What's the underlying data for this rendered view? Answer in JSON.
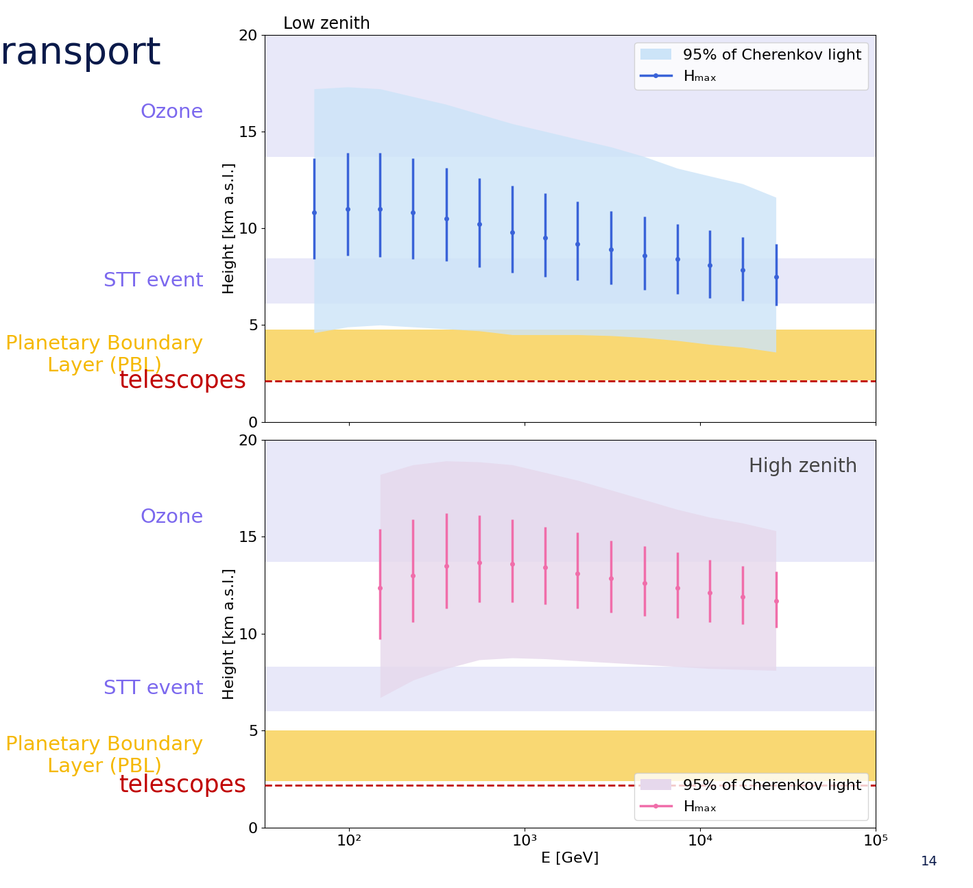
{
  "slide_title": "ransport",
  "page": 14,
  "chart_data": [
    {
      "type": "errorbar",
      "title": "Low zenith",
      "ylabel": "Height [km a.s.l.]",
      "xlim": [
        33,
        100000
      ],
      "ylim": [
        0,
        20
      ],
      "yticks": [
        0,
        5,
        10,
        15,
        20
      ],
      "xticks": [
        {
          "value": 100,
          "label": "10²"
        },
        {
          "value": 1000,
          "label": "10³"
        },
        {
          "value": 10000,
          "label": "10⁴"
        },
        {
          "value": 100000,
          "label": "10⁵"
        }
      ],
      "log": "x",
      "tick_labels": "y",
      "legend": "upper right",
      "x": [
        63,
        98,
        150,
        231,
        357,
        550,
        850,
        1310,
        2000,
        3100,
        4800,
        7400,
        11300,
        17400,
        27000
      ],
      "series": [
        {
          "name": "95% of Cherenkov light",
          "type": "band",
          "color": "#cce4f8",
          "lower": [
            4.6,
            4.9,
            5.0,
            4.9,
            4.8,
            4.7,
            4.5,
            4.5,
            4.5,
            4.45,
            4.35,
            4.2,
            4.0,
            3.85,
            3.6
          ],
          "upper": [
            17.2,
            17.3,
            17.2,
            16.8,
            16.4,
            15.9,
            15.4,
            15.0,
            14.6,
            14.2,
            13.7,
            13.1,
            12.7,
            12.3,
            11.6
          ]
        },
        {
          "name": "Hₘₐₓ",
          "type": "errorbar",
          "color": "#3a63d8",
          "marker": "o",
          "values": [
            10.8,
            11.0,
            11.0,
            10.8,
            10.5,
            10.2,
            9.8,
            9.5,
            9.2,
            8.9,
            8.6,
            8.4,
            8.1,
            7.85,
            7.5
          ],
          "error_low": [
            2.4,
            2.4,
            2.5,
            2.4,
            2.2,
            2.2,
            2.1,
            2.0,
            1.9,
            1.8,
            1.8,
            1.8,
            1.7,
            1.6,
            1.5
          ],
          "error_high": [
            2.8,
            2.9,
            2.9,
            2.8,
            2.6,
            2.4,
            2.4,
            2.3,
            2.2,
            2.0,
            2.0,
            1.8,
            1.8,
            1.7,
            1.7
          ]
        }
      ],
      "layers": [
        {
          "label": "Ozone",
          "range": [
            13.7,
            20
          ],
          "color": "#7b68ee"
        },
        {
          "label": "STT event",
          "range": [
            6.1,
            8.45
          ],
          "color": "#7b68ee"
        },
        {
          "label": "Planetary Boundary\nLayer (PBL)",
          "range": [
            2.15,
            4.75
          ],
          "color": "#f5b800"
        }
      ],
      "telescopes": {
        "label": "telescopes",
        "height": 2.1,
        "color": "#c00000"
      }
    },
    {
      "type": "errorbar",
      "title": "High zenith",
      "ylabel": "Height [km a.s.l.]",
      "xlabel": "E [GeV]",
      "xlim": [
        33,
        100000
      ],
      "ylim": [
        0,
        20
      ],
      "yticks": [
        0,
        5,
        10,
        15,
        20
      ],
      "xticks": [
        {
          "value": 100,
          "label": "10²"
        },
        {
          "value": 1000,
          "label": "10³"
        },
        {
          "value": 10000,
          "label": "10⁴"
        },
        {
          "value": 100000,
          "label": "10⁵"
        }
      ],
      "log": "x",
      "legend": "lower right",
      "x": [
        150,
        231,
        357,
        550,
        850,
        1310,
        2000,
        3100,
        4800,
        7400,
        11300,
        17400,
        27000
      ],
      "series": [
        {
          "name": "95% of Cherenkov light",
          "type": "band",
          "color": "#e6d8ec",
          "lower": [
            6.7,
            7.6,
            8.2,
            8.65,
            8.75,
            8.7,
            8.6,
            8.5,
            8.4,
            8.3,
            8.2,
            8.15,
            8.1
          ],
          "upper": [
            18.2,
            18.7,
            18.9,
            18.85,
            18.7,
            18.3,
            17.9,
            17.4,
            16.9,
            16.4,
            16.0,
            15.7,
            15.3
          ]
        },
        {
          "name": "Hₘₐₓ",
          "type": "errorbar",
          "color": "#f06eaa",
          "marker": "o",
          "values": [
            12.35,
            13.0,
            13.5,
            13.65,
            13.6,
            13.4,
            13.1,
            12.85,
            12.6,
            12.35,
            12.1,
            11.9,
            11.7
          ],
          "error_low": [
            2.65,
            2.4,
            2.2,
            2.05,
            2.0,
            1.9,
            1.8,
            1.75,
            1.7,
            1.55,
            1.5,
            1.4,
            1.4
          ],
          "error_high": [
            3.05,
            2.9,
            2.7,
            2.45,
            2.3,
            2.1,
            2.1,
            1.95,
            1.9,
            1.85,
            1.7,
            1.6,
            1.5
          ]
        }
      ],
      "layers": [
        {
          "label": "Ozone",
          "range": [
            13.7,
            20
          ],
          "color": "#7b68ee"
        },
        {
          "label": "STT event",
          "range": [
            6.0,
            8.3
          ],
          "color": "#7b68ee"
        },
        {
          "label": "Planetary Boundary\nLayer (PBL)",
          "range": [
            2.4,
            5.0
          ],
          "color": "#f5b800"
        }
      ],
      "telescopes": {
        "label": "telescopes",
        "height": 2.2,
        "color": "#c00000"
      }
    }
  ]
}
